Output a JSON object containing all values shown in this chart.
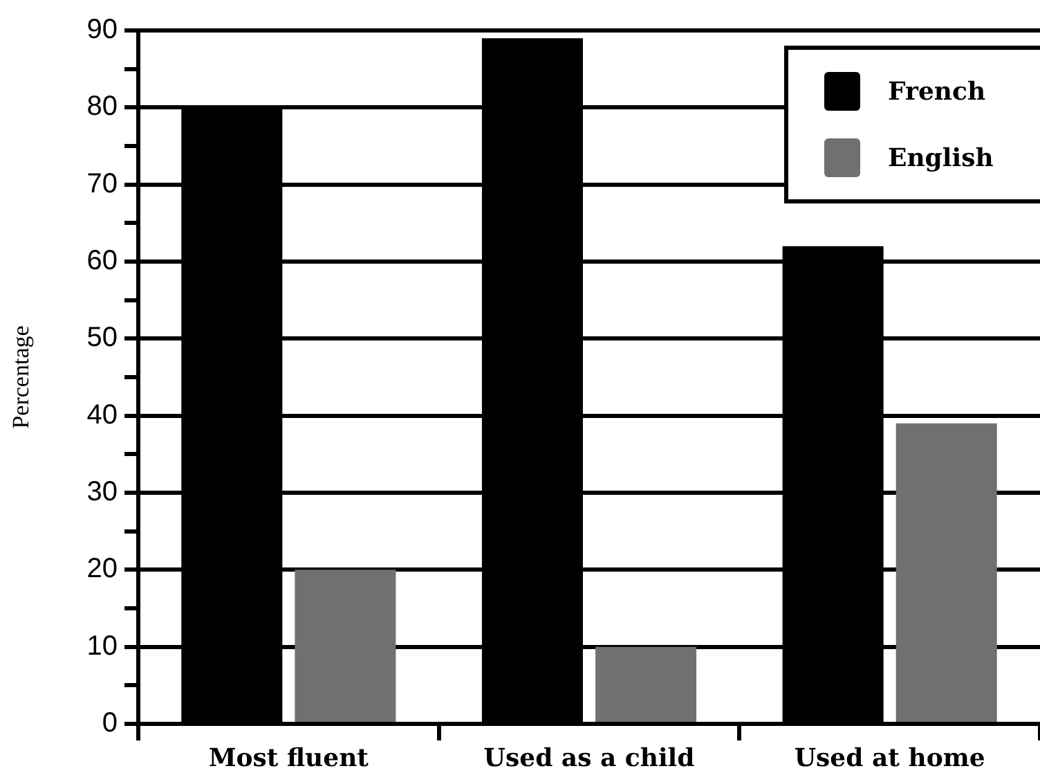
{
  "chart_data": {
    "type": "bar",
    "categories": [
      "Most fluent",
      "Used as a child",
      "Used at home"
    ],
    "series": [
      {
        "name": "French",
        "color": "#000000",
        "values": [
          80,
          89,
          62
        ]
      },
      {
        "name": "English",
        "color": "#707070",
        "values": [
          20,
          10,
          39
        ]
      }
    ],
    "ylabel": "Percentage",
    "ylim": [
      0,
      90
    ],
    "yticks": [
      0,
      {
        "value": 5,
        "label": null
      },
      10,
      {
        "value": 15,
        "label": null
      },
      20,
      {
        "value": 25,
        "label": null
      },
      30,
      {
        "value": 35,
        "label": null
      },
      40,
      {
        "value": 45,
        "label": null
      },
      50,
      {
        "value": 55,
        "label": null
      },
      60,
      {
        "value": 65,
        "label": null
      },
      70,
      {
        "value": 75,
        "label": null
      },
      80,
      {
        "value": 85,
        "label": null
      },
      90
    ],
    "grid": "y",
    "legend": "top right"
  }
}
